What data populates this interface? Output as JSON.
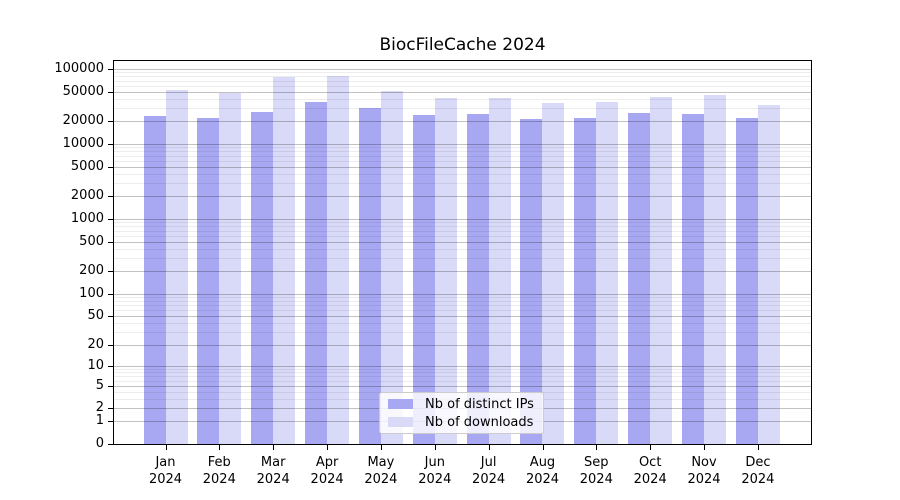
{
  "title": "BiocFileCache 2024",
  "chart_data": {
    "type": "bar",
    "title": "BiocFileCache 2024",
    "categories": [
      "Jan 2024",
      "Feb 2024",
      "Mar 2024",
      "Apr 2024",
      "May 2024",
      "Jun 2024",
      "Jul 2024",
      "Aug 2024",
      "Sep 2024",
      "Oct 2024",
      "Nov 2024",
      "Dec 2024"
    ],
    "series": [
      {
        "name": "Nb of distinct IPs",
        "color": "#a8a8f2",
        "values": [
          24000,
          22000,
          27000,
          36000,
          30000,
          24500,
          25000,
          21500,
          22500,
          26000,
          25000,
          22000
        ]
      },
      {
        "name": "Nb of downloads",
        "color": "#d9d9f8",
        "values": [
          52000,
          48000,
          78000,
          82000,
          51000,
          41000,
          41000,
          35500,
          36000,
          42500,
          45500,
          33000
        ]
      }
    ],
    "yscale": "log1p",
    "ylim": [
      0,
      128000
    ],
    "y_ticks": [
      0,
      1,
      2,
      5,
      10,
      20,
      50,
      100,
      200,
      500,
      1000,
      2000,
      5000,
      10000,
      20000,
      50000,
      100000
    ],
    "y_tick_labels": [
      "0",
      "1",
      "2",
      "5",
      "10",
      "20",
      "50",
      "100",
      "200",
      "500",
      "1000",
      "2000",
      "5000",
      "10000",
      "20000",
      "50000",
      "100000"
    ],
    "y_minor_ticks": [
      3,
      4,
      6,
      7,
      8,
      9,
      30,
      40,
      60,
      70,
      80,
      90,
      300,
      400,
      600,
      700,
      800,
      900,
      3000,
      4000,
      6000,
      7000,
      8000,
      9000,
      30000,
      40000,
      60000,
      70000,
      80000,
      90000
    ],
    "grid": true,
    "legend_position": "lower center"
  },
  "legend": {
    "items": [
      {
        "label": "Nb of distinct IPs",
        "swatch_color": "#a8a8f2"
      },
      {
        "label": "Nb of downloads",
        "swatch_color": "#d9d9f8"
      }
    ]
  },
  "colors": {
    "distinct_ips": "#a8a8f2",
    "downloads": "#d9d9f8",
    "spine": "#000000",
    "major_grid": "rgba(0,0,0,0.24)",
    "minor_grid": "rgba(0,0,0,0.07)",
    "legend_border": "#cccccc"
  }
}
